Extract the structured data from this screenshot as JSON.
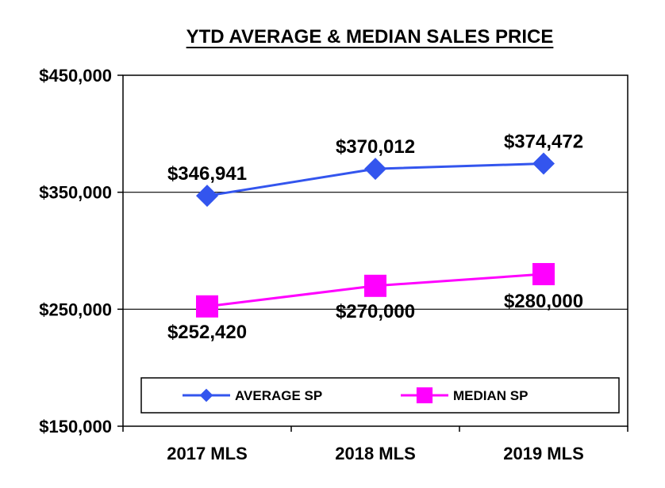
{
  "chart_data": {
    "type": "line",
    "title": "YTD AVERAGE & MEDIAN SALES PRICE",
    "categories": [
      "2017 MLS",
      "2018 MLS",
      "2019 MLS"
    ],
    "ylim": [
      150000,
      450000
    ],
    "yticks": [
      150000,
      250000,
      350000,
      450000
    ],
    "ytick_labels": [
      "$150,000",
      "$250,000",
      "$350,000",
      "$450,000"
    ],
    "grid": true,
    "legend_position": "bottom-inside",
    "series": [
      {
        "name": "AVERAGE SP",
        "values": [
          346941,
          370012,
          374472
        ],
        "labels": [
          "$346,941",
          "$370,012",
          "$374,472"
        ],
        "color": "#3355ee",
        "marker": "diamond"
      },
      {
        "name": "MEDIAN SP",
        "values": [
          252420,
          270000,
          280000
        ],
        "labels": [
          "$252,420",
          "$270,000",
          "$280,000"
        ],
        "color": "#ff00ff",
        "marker": "square"
      }
    ]
  }
}
